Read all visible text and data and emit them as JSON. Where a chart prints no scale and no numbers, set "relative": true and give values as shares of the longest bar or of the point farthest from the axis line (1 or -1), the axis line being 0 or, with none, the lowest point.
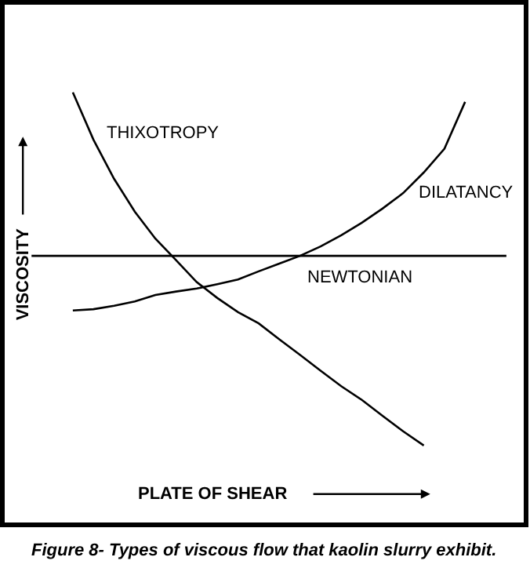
{
  "chart_data": {
    "type": "line",
    "relative": true,
    "xlabel": "PLATE OF SHEAR",
    "ylabel": "VISCOSITY",
    "categories": [
      null,
      null,
      null,
      null,
      null,
      null,
      null,
      null,
      null,
      null,
      null,
      null,
      null,
      null,
      null,
      null,
      null,
      null,
      null,
      null,
      null,
      null,
      null,
      null
    ],
    "series": [
      {
        "name": "THIXOTROPY",
        "color": "#000000",
        "values": [
          null,
          null,
          1,
          0.89,
          0.799,
          0.723,
          0.66,
          0.61,
          0.559,
          0.522,
          0.489,
          0.463,
          0.426,
          0.39,
          0.353,
          0.317,
          0.285,
          0.248,
          0.212,
          0.179,
          null,
          null,
          null,
          null
        ]
      },
      {
        "name": "DILATANCY",
        "color": "#000000",
        "values": [
          null,
          null,
          0.493,
          0.496,
          0.504,
          0.514,
          0.529,
          0.537,
          0.544,
          0.554,
          0.565,
          0.584,
          0.602,
          0.62,
          0.642,
          0.668,
          0.697,
          0.73,
          0.766,
          0.814,
          0.869,
          0.978,
          null,
          null
        ]
      },
      {
        "name": "NEWTONIAN",
        "color": "#000000",
        "values": [
          0.62,
          0.62,
          0.62,
          0.62,
          0.62,
          0.62,
          0.62,
          0.62,
          0.62,
          0.62,
          0.62,
          0.62,
          0.62,
          0.62,
          0.62,
          0.62,
          0.62,
          0.62,
          0.62,
          0.62,
          0.62,
          0.62,
          0.62,
          0.62
        ]
      }
    ],
    "annotations": [
      "Figure 8- Types of viscous flow that kaolin slurry exhibit."
    ]
  }
}
